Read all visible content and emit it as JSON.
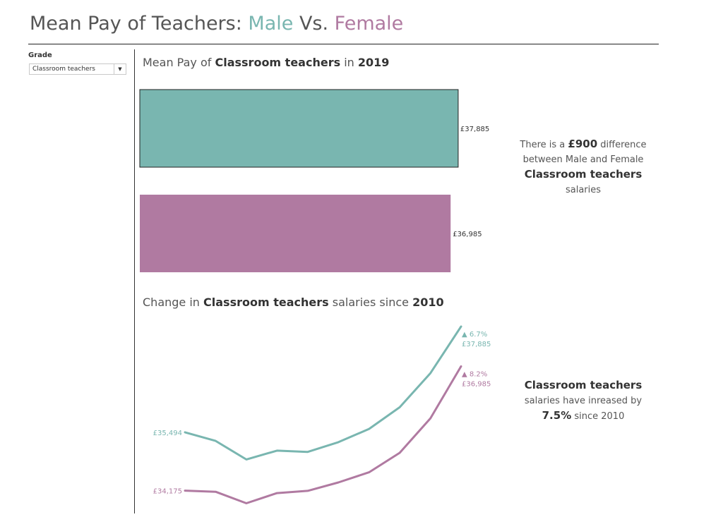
{
  "header": {
    "title_prefix": "Mean Pay of Teachers: ",
    "title_male": "Male",
    "title_vs": " Vs. ",
    "title_female": "Female"
  },
  "filter": {
    "label": "Grade",
    "selected": "Classroom teachers"
  },
  "colors": {
    "male": "#79b6b0",
    "female": "#b07aa1"
  },
  "bar_section": {
    "title_pre": "Mean Pay of ",
    "title_grade": "Classroom teachers",
    "title_mid": " in ",
    "title_year": "2019"
  },
  "line_section": {
    "title_pre": "Change in ",
    "title_grade": "Classroom teachers",
    "title_mid": " salaries since ",
    "title_year": "2010"
  },
  "note1": {
    "pre": "There is a ",
    "amount": "£900",
    "post": " difference",
    "line2": "between Male and Female",
    "grade": "Classroom teachers",
    "line4": "salaries"
  },
  "note2": {
    "grade": "Classroom teachers",
    "line2": "salaries have inreased by",
    "pct": "7.5%",
    "post": " since 2010"
  },
  "chart_data": [
    {
      "type": "bar",
      "categories": [
        "Male",
        "Female"
      ],
      "values": [
        37885,
        36985
      ],
      "labels": [
        "£37,885",
        "£36,985"
      ],
      "colors": [
        "#79b6b0",
        "#b07aa1"
      ],
      "xlim": [
        0,
        41000
      ]
    },
    {
      "type": "line",
      "x": [
        2010,
        2011,
        2012,
        2013,
        2014,
        2015,
        2016,
        2017,
        2018,
        2019
      ],
      "series": [
        {
          "name": "Male",
          "color": "#79b6b0",
          "values": [
            35494,
            35300,
            34880,
            35080,
            35050,
            35270,
            35570,
            36060,
            36830,
            37885
          ],
          "start_label": "£35,494",
          "end_change": "▲ 6.7%",
          "end_label": "£37,885"
        },
        {
          "name": "Female",
          "color": "#b07aa1",
          "values": [
            34175,
            34150,
            33890,
            34120,
            34170,
            34360,
            34590,
            35030,
            35810,
            36985
          ],
          "start_label": "£34,175",
          "end_change": "▲ 8.2%",
          "end_label": "£36,985"
        }
      ],
      "ylim": [
        33850,
        37900
      ]
    }
  ]
}
